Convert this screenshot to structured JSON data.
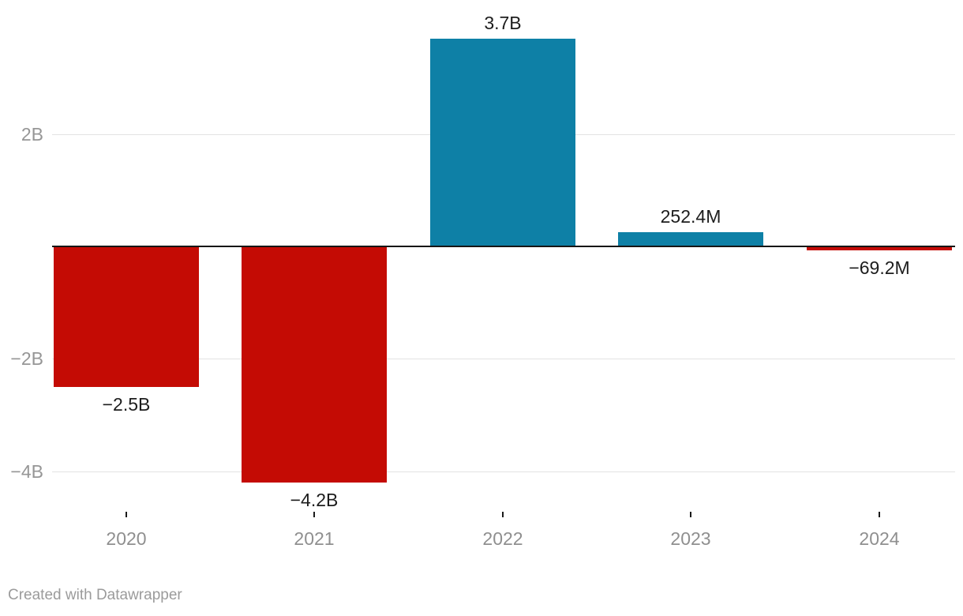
{
  "footer": {
    "credit": "Created with Datawrapper"
  },
  "chart_data": {
    "type": "bar",
    "title": "",
    "categories": [
      "2020",
      "2021",
      "2022",
      "2023",
      "2024"
    ],
    "values_billions": [
      -2.5,
      -4.2,
      3.7,
      0.2524,
      -0.0692
    ],
    "value_labels": [
      "−2.5B",
      "−4.2B",
      "3.7B",
      "252.4M",
      "−69.2M"
    ],
    "y_axis": {
      "ticks": [
        {
          "value": 2,
          "label": "2B"
        },
        {
          "value": -2,
          "label": "−2B"
        },
        {
          "value": -4,
          "label": "−4B"
        }
      ],
      "ylim": [
        -4.4,
        3.9
      ],
      "grid": true,
      "zero_baseline": true
    },
    "legend_position": "none",
    "colors": {
      "positive": "#0e80a6",
      "negative": "#c40b04",
      "baseline": "#161616",
      "gridline": "#e3e3e3",
      "value_text": "#1d1d1d",
      "axis_text": "#949494"
    }
  }
}
